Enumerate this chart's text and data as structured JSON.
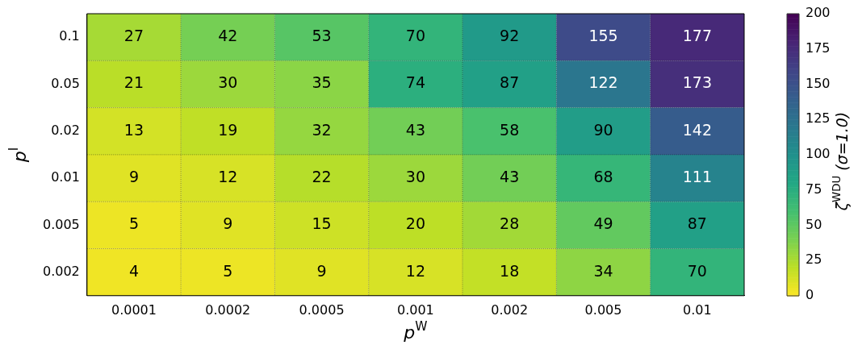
{
  "chart_data": {
    "type": "heatmap",
    "xlabel": "p$^{W}$",
    "ylabel": "p$^{I}$",
    "clabel": "ζ$^{WDU}$ (σ=1.0)",
    "categories": [
      "0.0001",
      "0.0002",
      "0.0005",
      "0.001",
      "0.002",
      "0.005",
      "0.01"
    ],
    "y_categories": [
      "0.1",
      "0.05",
      "0.02",
      "0.01",
      "0.005",
      "0.002"
    ],
    "cells": [
      [
        27,
        42,
        53,
        70,
        92,
        155,
        177
      ],
      [
        21,
        30,
        35,
        74,
        87,
        122,
        173
      ],
      [
        13,
        19,
        32,
        43,
        58,
        90,
        142
      ],
      [
        9,
        12,
        22,
        30,
        43,
        68,
        111
      ],
      [
        5,
        9,
        15,
        20,
        28,
        49,
        87
      ],
      [
        4,
        5,
        9,
        12,
        18,
        34,
        70
      ]
    ],
    "clim": [
      0,
      200
    ],
    "cticks": [
      0,
      25,
      50,
      75,
      100,
      125,
      150,
      175,
      200
    ],
    "data_labels": true,
    "grid": true
  }
}
